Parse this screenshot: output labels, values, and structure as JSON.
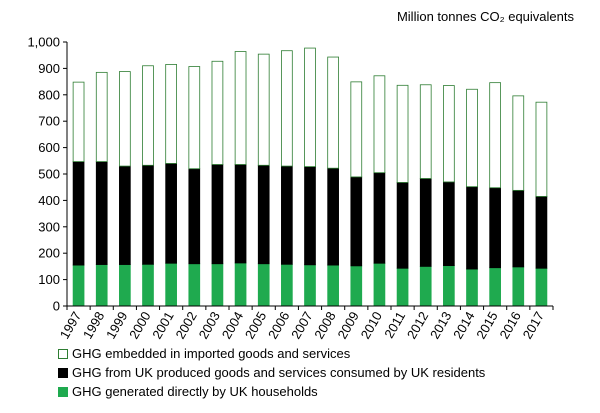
{
  "chart_data": {
    "type": "bar",
    "stacked": true,
    "unit_label": "Million tonnes CO₂ equivalents",
    "categories": [
      "1997",
      "1998",
      "1999",
      "2000",
      "2001",
      "2002",
      "2003",
      "2004",
      "2005",
      "2006",
      "2007",
      "2008",
      "2009",
      "2010",
      "2011",
      "2012",
      "2013",
      "2014",
      "2015",
      "2016",
      "2017"
    ],
    "ylim": [
      0,
      1000
    ],
    "yticks": [
      "0",
      "100",
      "200",
      "300",
      "400",
      "500",
      "600",
      "700",
      "800",
      "900",
      "1,000"
    ],
    "grid": false,
    "legend_position": "bottom",
    "colors": {
      "households": "#1faa4f",
      "uk_produced": "#000000",
      "imported_fill": "#ffffff",
      "imported_edge": "#2e7d32"
    },
    "series": [
      {
        "name": "GHG generated directly by UK households",
        "values": [
          155,
          157,
          157,
          158,
          162,
          160,
          160,
          163,
          160,
          158,
          156,
          155,
          152,
          162,
          143,
          150,
          153,
          140,
          145,
          148,
          143
        ]
      },
      {
        "name": "GHG from UK produced goods and services consumed by UK residents",
        "values": [
          392,
          390,
          373,
          375,
          378,
          360,
          376,
          373,
          373,
          372,
          372,
          367,
          337,
          343,
          325,
          333,
          317,
          312,
          303,
          290,
          272
        ]
      },
      {
        "name": "GHG embedded in imported goods and services",
        "values": [
          301,
          338,
          358,
          377,
          375,
          387,
          391,
          428,
          421,
          437,
          449,
          421,
          360,
          367,
          368,
          355,
          365,
          369,
          398,
          358,
          357
        ]
      }
    ]
  }
}
